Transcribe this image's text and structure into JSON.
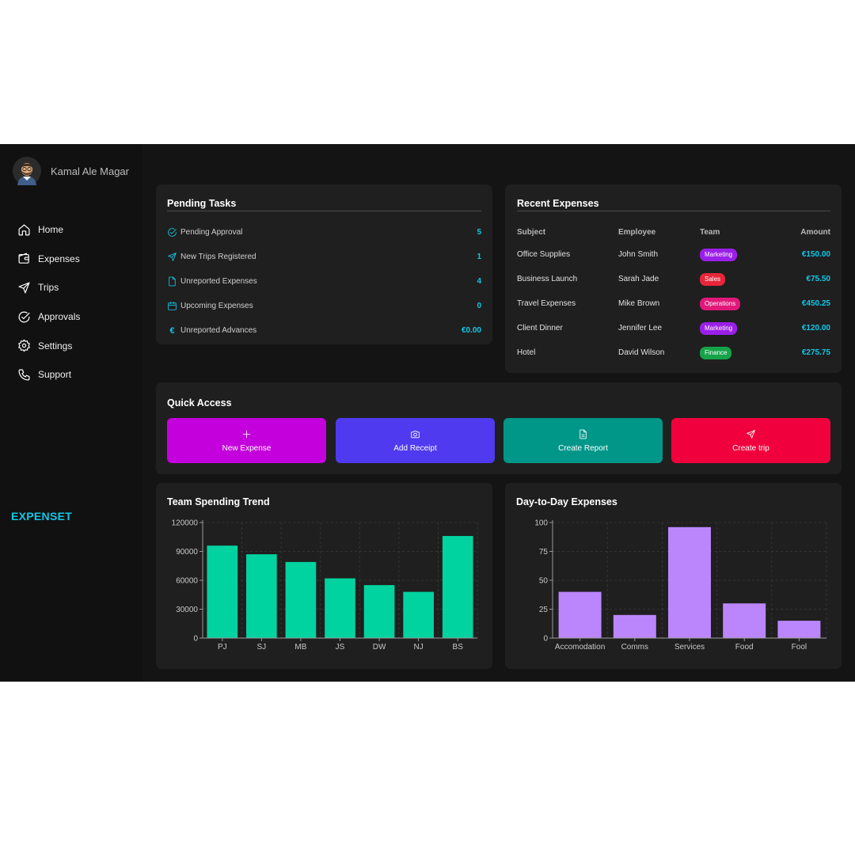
{
  "user": {
    "name": "Kamal Ale Magar",
    "avatar_icon": "avatar-icon"
  },
  "nav": [
    {
      "label": "Home",
      "icon": "home-icon"
    },
    {
      "label": "Expenses",
      "icon": "wallet-icon"
    },
    {
      "label": "Trips",
      "icon": "plane-icon"
    },
    {
      "label": "Approvals",
      "icon": "check-circle-icon"
    },
    {
      "label": "Settings",
      "icon": "gear-icon"
    },
    {
      "label": "Support",
      "icon": "phone-icon"
    }
  ],
  "brand": "EXPENSET",
  "pending": {
    "title": "Pending Tasks",
    "items": [
      {
        "label": "Pending Approval",
        "value": "5",
        "icon": "check-circle-icon"
      },
      {
        "label": "New Trips Registered",
        "value": "1",
        "icon": "plane-icon"
      },
      {
        "label": "Unreported Expenses",
        "value": "4",
        "icon": "document-icon"
      },
      {
        "label": "Upcoming Expenses",
        "value": "0",
        "icon": "calendar-icon"
      },
      {
        "label": "Unreported Advances",
        "value": "€0.00",
        "icon": "euro-icon",
        "glyph": "€"
      }
    ]
  },
  "recent": {
    "title": "Recent Expenses",
    "headers": {
      "subject": "Subject",
      "employee": "Employee",
      "team": "Team",
      "amount": "Amount"
    },
    "rows": [
      {
        "subject": "Office Supplies",
        "employee": "John Smith",
        "team": "Marketing",
        "team_color": "#9b1fe8",
        "amount": "€150.00"
      },
      {
        "subject": "Business Launch",
        "employee": "Sarah Jade",
        "team": "Sales",
        "team_color": "#e8263a",
        "amount": "€75.50"
      },
      {
        "subject": "Travel Expenses",
        "employee": "Mike Brown",
        "team": "Operations",
        "team_color": "#e0187a",
        "amount": "€450.25"
      },
      {
        "subject": "Client Dinner",
        "employee": "Jennifer Lee",
        "team": "Marketing",
        "team_color": "#9b1fe8",
        "amount": "€120.00"
      },
      {
        "subject": "Hotel",
        "employee": "David Wilson",
        "team": "Finance",
        "team_color": "#16a34a",
        "amount": "€275.75"
      }
    ]
  },
  "quick": {
    "title": "Quick Access",
    "actions": [
      {
        "label": "New Expense",
        "icon": "plus-icon",
        "color": "#c400dc"
      },
      {
        "label": "Add Receipt",
        "icon": "camera-icon",
        "color": "#4f3af0"
      },
      {
        "label": "Create Report",
        "icon": "document-icon",
        "color": "#009688"
      },
      {
        "label": "Create trip",
        "icon": "plane-icon",
        "color": "#f0003c"
      }
    ]
  },
  "charts": {
    "trend_title": "Team Spending Trend",
    "daily_title": "Day-to-Day Expenses"
  },
  "chart_data": [
    {
      "type": "bar",
      "title": "Team Spending Trend",
      "categories": [
        "PJ",
        "SJ",
        "MB",
        "JS",
        "DW",
        "NJ",
        "BS"
      ],
      "values": [
        96000,
        87000,
        79000,
        62000,
        55000,
        48000,
        106000
      ],
      "ylim": [
        0,
        120000
      ],
      "yticks": [
        0,
        30000,
        60000,
        90000,
        120000
      ],
      "color": "#00d3a0",
      "grid": true,
      "xlabel": "",
      "ylabel": ""
    },
    {
      "type": "bar",
      "title": "Day-to-Day Expenses",
      "categories": [
        "Accomodation",
        "Comms",
        "Services",
        "Food",
        "Fool"
      ],
      "values": [
        40,
        20,
        96,
        30,
        15
      ],
      "ylim": [
        0,
        100
      ],
      "yticks": [
        0,
        25,
        50,
        75,
        100
      ],
      "color": "#bb86fc",
      "grid": true,
      "xlabel": "",
      "ylabel": ""
    }
  ]
}
